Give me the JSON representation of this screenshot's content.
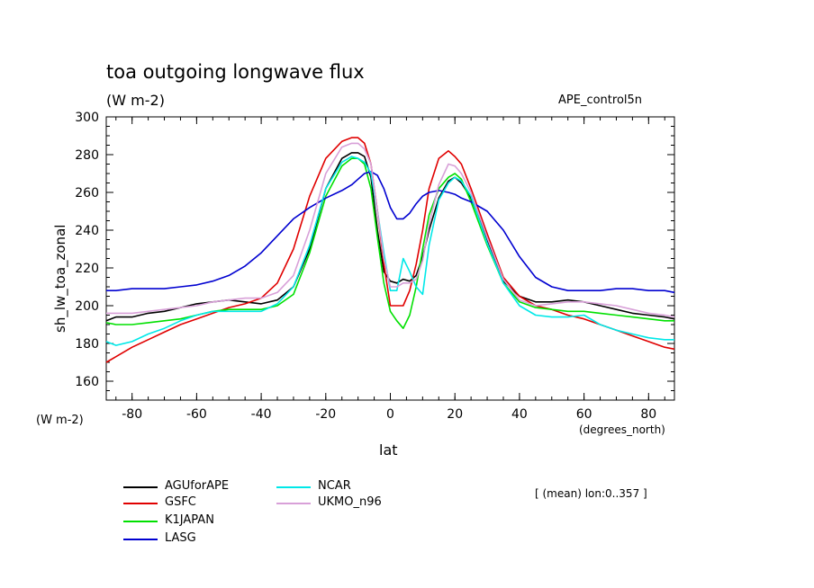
{
  "chart_data": {
    "type": "line",
    "title": "toa outgoing longwave flux",
    "units": "(W m-2)",
    "run_label": "APE_control5n",
    "ylabel": "sh_lw_toa_zonal",
    "xlabel": "lat",
    "x_units": "(degrees_north)",
    "y_units": "(W m-2)",
    "xlim": [
      -88,
      88
    ],
    "ylim": [
      150,
      300
    ],
    "xticks": [
      -80,
      -60,
      -40,
      -20,
      0,
      20,
      40,
      60,
      80
    ],
    "xtick_labels": [
      "-80",
      "-60",
      "-40",
      "-20",
      "0",
      "20",
      "40",
      "60",
      "80"
    ],
    "yticks": [
      160,
      180,
      200,
      220,
      240,
      260,
      280,
      300
    ],
    "ytick_labels": [
      "160",
      "180",
      "200",
      "220",
      "240",
      "260",
      "280",
      "300"
    ],
    "grid": false,
    "legend_position": "bottom-left",
    "annotation": "[ (mean) lon:0..357 ]",
    "series": [
      {
        "name": "AGUforAPE",
        "color": "#000000",
        "x": [
          -88,
          -85,
          -80,
          -75,
          -70,
          -65,
          -60,
          -55,
          -50,
          -45,
          -40,
          -35,
          -30,
          -25,
          -20,
          -15,
          -12,
          -10,
          -8,
          -6,
          -4,
          -2,
          0,
          2,
          4,
          6,
          8,
          10,
          12,
          15,
          18,
          20,
          22,
          25,
          30,
          35,
          40,
          45,
          50,
          55,
          60,
          65,
          70,
          75,
          80,
          85,
          88
        ],
        "y": [
          192,
          194,
          194,
          196,
          197,
          199,
          201,
          202,
          203,
          202,
          201,
          203,
          210,
          230,
          262,
          278,
          281,
          281,
          279,
          268,
          240,
          218,
          213,
          212,
          214,
          213,
          216,
          226,
          240,
          257,
          266,
          268,
          265,
          257,
          235,
          213,
          205,
          202,
          202,
          203,
          202,
          200,
          198,
          196,
          195,
          194,
          193
        ]
      },
      {
        "name": "GSFC",
        "color": "#e00000",
        "x": [
          -88,
          -85,
          -80,
          -75,
          -70,
          -65,
          -60,
          -55,
          -50,
          -45,
          -40,
          -35,
          -30,
          -25,
          -20,
          -15,
          -12,
          -10,
          -8,
          -6,
          -4,
          -2,
          0,
          2,
          4,
          6,
          8,
          10,
          12,
          15,
          18,
          20,
          22,
          25,
          30,
          35,
          40,
          45,
          50,
          55,
          60,
          65,
          70,
          75,
          80,
          85,
          88
        ],
        "y": [
          170,
          173,
          178,
          182,
          186,
          190,
          193,
          196,
          199,
          201,
          204,
          212,
          230,
          258,
          278,
          287,
          289,
          289,
          286,
          275,
          250,
          222,
          200,
          200,
          200,
          208,
          222,
          240,
          262,
          278,
          282,
          279,
          275,
          262,
          238,
          215,
          205,
          200,
          198,
          195,
          193,
          190,
          187,
          184,
          181,
          178,
          177
        ]
      },
      {
        "name": "K1JAPAN",
        "color": "#00e000",
        "x": [
          -88,
          -85,
          -80,
          -75,
          -70,
          -65,
          -60,
          -55,
          -50,
          -45,
          -40,
          -35,
          -30,
          -25,
          -20,
          -15,
          -12,
          -10,
          -8,
          -6,
          -4,
          -2,
          0,
          2,
          4,
          6,
          8,
          10,
          12,
          15,
          18,
          20,
          22,
          25,
          30,
          35,
          40,
          45,
          50,
          55,
          60,
          65,
          70,
          75,
          80,
          85,
          88
        ],
        "y": [
          191,
          190,
          190,
          191,
          192,
          193,
          195,
          197,
          198,
          198,
          198,
          200,
          206,
          228,
          258,
          274,
          278,
          278,
          275,
          262,
          236,
          212,
          197,
          192,
          188,
          195,
          210,
          230,
          248,
          262,
          268,
          270,
          267,
          255,
          232,
          212,
          202,
          199,
          198,
          197,
          197,
          196,
          195,
          194,
          193,
          192,
          192
        ]
      },
      {
        "name": "LASG",
        "color": "#0000d0",
        "x": [
          -88,
          -85,
          -80,
          -75,
          -70,
          -65,
          -60,
          -55,
          -50,
          -45,
          -40,
          -35,
          -30,
          -25,
          -20,
          -15,
          -12,
          -10,
          -8,
          -6,
          -4,
          -2,
          0,
          2,
          4,
          6,
          8,
          10,
          12,
          15,
          18,
          20,
          22,
          25,
          30,
          35,
          40,
          45,
          50,
          55,
          60,
          65,
          70,
          75,
          80,
          85,
          88
        ],
        "y": [
          208,
          208,
          209,
          209,
          209,
          210,
          211,
          213,
          216,
          221,
          228,
          237,
          246,
          252,
          257,
          261,
          264,
          267,
          270,
          271,
          269,
          262,
          252,
          246,
          246,
          249,
          254,
          258,
          260,
          261,
          260,
          259,
          257,
          255,
          250,
          240,
          226,
          215,
          210,
          208,
          208,
          208,
          209,
          209,
          208,
          208,
          207
        ]
      },
      {
        "name": "NCAR",
        "color": "#00e8e8",
        "x": [
          -88,
          -85,
          -80,
          -75,
          -70,
          -65,
          -60,
          -55,
          -50,
          -45,
          -40,
          -35,
          -30,
          -25,
          -20,
          -15,
          -12,
          -10,
          -8,
          -6,
          -4,
          -2,
          0,
          2,
          4,
          6,
          8,
          10,
          12,
          15,
          18,
          20,
          22,
          25,
          30,
          35,
          40,
          45,
          50,
          55,
          60,
          65,
          70,
          75,
          80,
          85,
          88
        ],
        "y": [
          181,
          179,
          181,
          185,
          188,
          192,
          195,
          197,
          197,
          197,
          197,
          201,
          210,
          232,
          262,
          276,
          279,
          278,
          276,
          270,
          250,
          228,
          208,
          208,
          225,
          218,
          210,
          206,
          232,
          256,
          265,
          268,
          266,
          258,
          233,
          212,
          200,
          195,
          194,
          194,
          195,
          190,
          187,
          185,
          183,
          182,
          182
        ]
      },
      {
        "name": "UKMO_n96",
        "color": "#d8a0d8",
        "x": [
          -88,
          -85,
          -80,
          -75,
          -70,
          -65,
          -60,
          -55,
          -50,
          -45,
          -40,
          -35,
          -30,
          -25,
          -20,
          -15,
          -12,
          -10,
          -8,
          -6,
          -4,
          -2,
          0,
          2,
          4,
          6,
          8,
          10,
          12,
          15,
          18,
          20,
          22,
          25,
          30,
          35,
          40,
          45,
          50,
          55,
          60,
          65,
          70,
          75,
          80,
          85,
          88
        ],
        "y": [
          196,
          196,
          196,
          197,
          198,
          199,
          200,
          202,
          203,
          204,
          204,
          207,
          216,
          240,
          270,
          284,
          286,
          286,
          283,
          275,
          250,
          225,
          210,
          210,
          212,
          212,
          214,
          224,
          243,
          264,
          275,
          274,
          270,
          260,
          236,
          214,
          203,
          200,
          201,
          202,
          202,
          201,
          200,
          198,
          196,
          195,
          194
        ]
      }
    ]
  }
}
